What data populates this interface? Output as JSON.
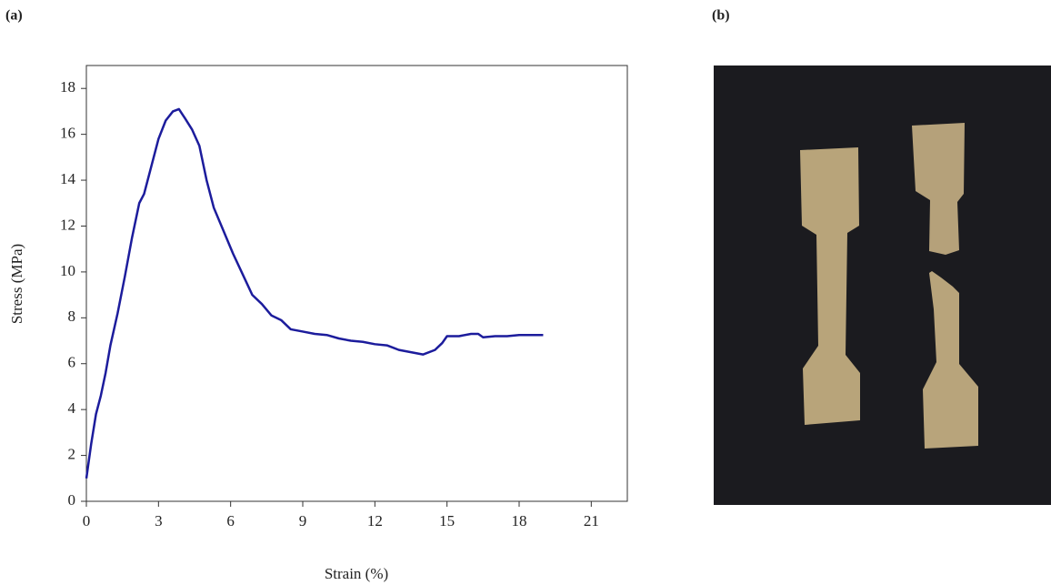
{
  "panels": [
    "(a)",
    "(b)"
  ],
  "chart_data": {
    "type": "line",
    "x_label": "Strain (%)",
    "y_label": "Stress (MPa)",
    "xlim": [
      0,
      22.5
    ],
    "ylim": [
      0,
      19
    ],
    "xticks": [
      0,
      3,
      6,
      9,
      12,
      15,
      18,
      21
    ],
    "yticks": [
      0,
      2,
      4,
      6,
      8,
      10,
      12,
      14,
      16,
      18
    ],
    "grid": false,
    "series": [
      {
        "color": "#1c1c9c",
        "x": [
          0,
          0.2,
          0.4,
          0.6,
          0.8,
          1.0,
          1.3,
          1.6,
          1.9,
          2.2,
          2.4,
          2.7,
          3.0,
          3.3,
          3.6,
          3.85,
          4.1,
          4.4,
          4.7,
          5.0,
          5.3,
          5.7,
          6.1,
          6.5,
          6.9,
          7.3,
          7.7,
          8.1,
          8.5,
          9.0,
          9.5,
          10.0,
          10.5,
          11.0,
          11.5,
          12.0,
          12.5,
          13.0,
          13.5,
          14.0,
          14.5,
          14.8,
          15.0,
          15.5,
          16.0,
          16.3,
          16.5,
          17.0,
          17.5,
          18.0,
          18.5,
          19.0
        ],
        "values": [
          1.0,
          2.5,
          3.8,
          4.6,
          5.6,
          6.8,
          8.2,
          9.8,
          11.5,
          13.0,
          13.4,
          14.6,
          15.8,
          16.6,
          17.0,
          17.1,
          16.7,
          16.2,
          15.5,
          14.0,
          12.8,
          11.8,
          10.8,
          9.9,
          9.0,
          8.6,
          8.1,
          7.9,
          7.5,
          7.4,
          7.3,
          7.25,
          7.1,
          7.0,
          6.95,
          6.85,
          6.8,
          6.6,
          6.5,
          6.4,
          6.6,
          6.9,
          7.2,
          7.2,
          7.3,
          7.3,
          7.15,
          7.2,
          7.2,
          7.25,
          7.25,
          7.25
        ]
      }
    ]
  }
}
